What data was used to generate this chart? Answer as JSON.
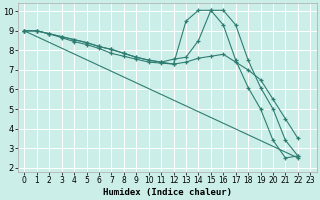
{
  "xlabel": "Humidex (Indice chaleur)",
  "bg_color": "#cceee8",
  "line_color": "#2e7d72",
  "grid_color": "#ffffff",
  "xlim": [
    -0.5,
    23.5
  ],
  "ylim": [
    1.8,
    10.4
  ],
  "yticks": [
    2,
    3,
    4,
    5,
    6,
    7,
    8,
    9,
    10
  ],
  "xticks": [
    0,
    1,
    2,
    3,
    4,
    5,
    6,
    7,
    8,
    9,
    10,
    11,
    12,
    13,
    14,
    15,
    16,
    17,
    18,
    19,
    20,
    21,
    22,
    23
  ],
  "lines": [
    {
      "x": [
        0,
        1,
        2,
        3,
        4,
        5,
        6,
        7,
        8,
        9,
        10,
        11,
        12,
        13,
        14,
        15,
        16,
        17,
        18,
        19,
        20,
        21,
        22
      ],
      "y": [
        9,
        9,
        8.85,
        8.7,
        8.55,
        8.4,
        8.2,
        8.05,
        7.85,
        7.65,
        7.5,
        7.4,
        7.3,
        9.5,
        10.05,
        10.05,
        9.3,
        7.5,
        6.1,
        5.0,
        3.4,
        2.5,
        2.6
      ]
    },
    {
      "x": [
        0,
        1,
        2,
        3,
        4,
        5,
        6,
        7,
        8,
        9,
        10,
        11,
        12,
        13,
        14,
        15,
        16,
        17,
        18,
        19,
        20,
        21,
        22
      ],
      "y": [
        9,
        9,
        8.85,
        8.7,
        8.55,
        8.4,
        8.2,
        8.05,
        7.85,
        7.65,
        7.5,
        7.4,
        7.55,
        7.65,
        8.5,
        10.05,
        10.05,
        9.3,
        7.5,
        6.1,
        5.0,
        3.4,
        2.6
      ]
    },
    {
      "x": [
        0,
        22
      ],
      "y": [
        9,
        2.5
      ]
    },
    {
      "x": [
        0,
        1,
        2,
        3,
        4,
        5,
        6,
        7,
        8,
        9,
        10,
        11,
        12,
        13,
        14,
        15,
        16,
        17,
        18,
        19,
        20,
        21,
        22
      ],
      "y": [
        9,
        9,
        8.85,
        8.65,
        8.45,
        8.3,
        8.1,
        7.85,
        7.7,
        7.55,
        7.4,
        7.35,
        7.3,
        7.4,
        7.6,
        7.7,
        7.8,
        7.4,
        7.0,
        6.5,
        5.5,
        4.5,
        3.5
      ]
    }
  ]
}
